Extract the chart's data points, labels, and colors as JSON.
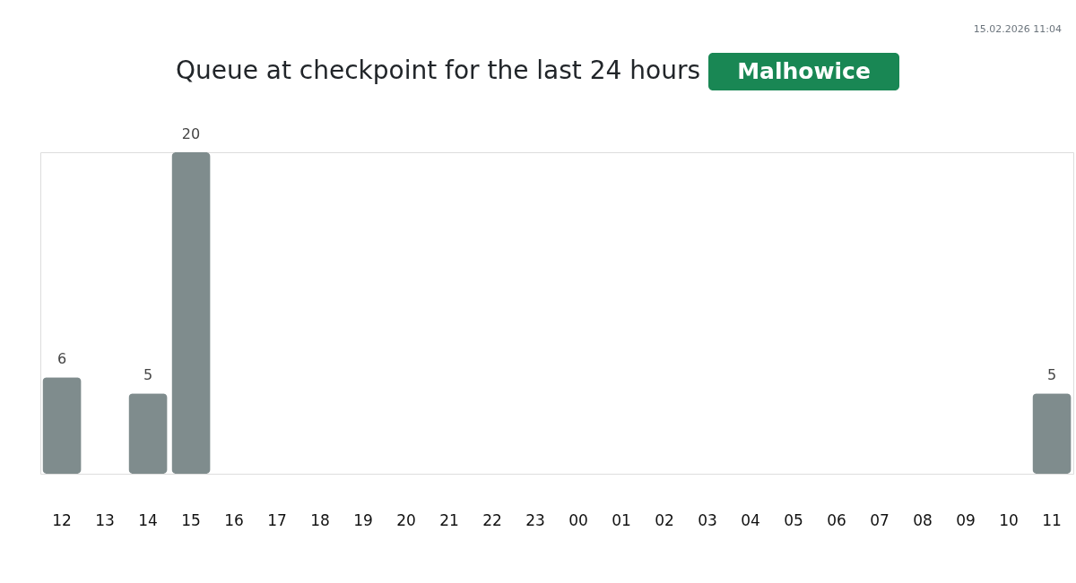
{
  "chart_data": {
    "type": "bar",
    "title": "Queue at checkpoint for the last 24 hours",
    "subtitle": "Malhowice",
    "annotations": [
      "15.02.2026 11:04"
    ],
    "categories": [
      "12",
      "13",
      "14",
      "15",
      "16",
      "17",
      "18",
      "19",
      "20",
      "21",
      "22",
      "23",
      "00",
      "01",
      "02",
      "03",
      "04",
      "05",
      "06",
      "07",
      "08",
      "09",
      "10",
      "11"
    ],
    "values": [
      6,
      null,
      5,
      20,
      null,
      null,
      null,
      null,
      null,
      null,
      null,
      null,
      null,
      null,
      null,
      null,
      null,
      null,
      null,
      null,
      null,
      null,
      null,
      5
    ],
    "color": "#7f8c8d",
    "data_labels": true,
    "tick_labels": "x"
  }
}
